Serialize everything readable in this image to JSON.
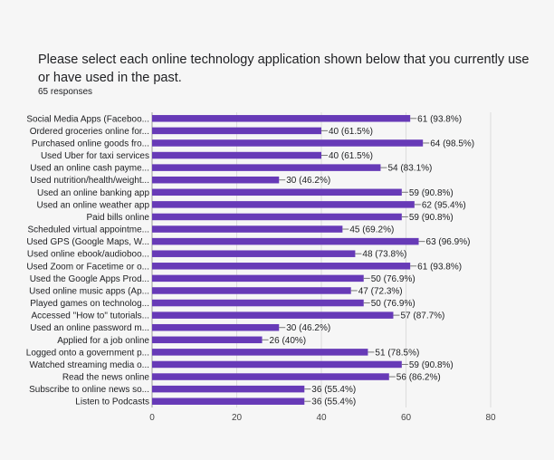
{
  "question": {
    "title": "Please select each online technology application shown below that you currently use or have used in the past.",
    "responses": "65 responses"
  },
  "colors": {
    "bar": "#673ab7",
    "grid": "#dcdcdc",
    "axis": "#9e9e9e",
    "leader": "#777777"
  },
  "chart_data": {
    "type": "bar",
    "orientation": "horizontal",
    "categories": [
      "Social Media Apps (Faceboo...",
      "Ordered groceries online for...",
      "Purchased online goods fro...",
      "Used Uber for taxi services",
      "Used an online cash payme...",
      "Used nutrition/health/weight...",
      "Used an online banking app",
      "Used an online weather app",
      "Paid bills online",
      "Scheduled virtual appointme...",
      "Used GPS (Google Maps, W...",
      "Used online ebook/audioboo...",
      "Used Zoom or Facetime or o...",
      "Used the Google Apps Prod...",
      "Used online music apps (Ap...",
      "Played games on technolog...",
      "Accessed \"How to\" tutorials...",
      "Used an online password m...",
      "Applied for a job online",
      "Logged onto a government p...",
      "Watched streaming media o...",
      "Read the news online",
      "Subscribe to online news so...",
      "Listen to Podcasts"
    ],
    "values": [
      61,
      40,
      64,
      40,
      54,
      30,
      59,
      62,
      59,
      45,
      63,
      48,
      61,
      50,
      47,
      50,
      57,
      30,
      26,
      51,
      59,
      56,
      36,
      36
    ],
    "data_labels": [
      "61 (93.8%)",
      "40 (61.5%)",
      "64 (98.5%)",
      "40 (61.5%)",
      "54 (83.1%)",
      "30 (46.2%)",
      "59 (90.8%)",
      "62 (95.4%)",
      "59 (90.8%)",
      "45 (69.2%)",
      "63 (96.9%)",
      "48 (73.8%)",
      "61 (93.8%)",
      "50 (76.9%)",
      "47 (72.3%)",
      "50 (76.9%)",
      "57 (87.7%)",
      "30 (46.2%)",
      "26 (40%)",
      "51 (78.5%)",
      "59 (90.8%)",
      "56 (86.2%)",
      "36 (55.4%)",
      "36 (55.4%)"
    ],
    "xlim": [
      0,
      80
    ],
    "xticks": [
      "0",
      "20",
      "40",
      "60",
      "80"
    ],
    "grid": true
  }
}
